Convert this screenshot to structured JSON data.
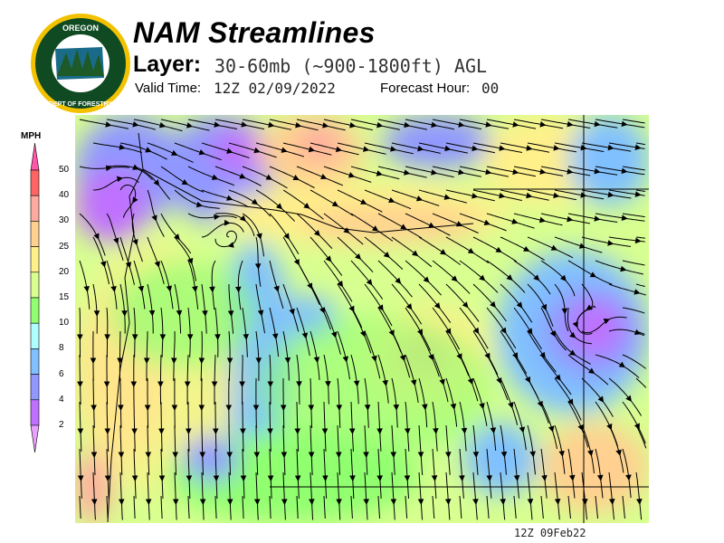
{
  "header": {
    "title": "NAM Streamlines",
    "layer_label": "Layer:",
    "layer_value": "30-60mb (~900-1800ft) AGL",
    "valid_time_label": "Valid Time:",
    "valid_time_value": "12Z 02/09/2022",
    "forecast_hour_label": "Forecast Hour:",
    "forecast_hour_value": "00"
  },
  "logo": {
    "text_top": "OREGON",
    "text_bottom": "DEPARTMENT OF FORESTRY"
  },
  "legend": {
    "units": "MPH",
    "ticks": [
      "50",
      "40",
      "30",
      "25",
      "20",
      "15",
      "10",
      "8",
      "6",
      "4",
      "2"
    ],
    "colors": [
      "#ff6464",
      "#ffaaa0",
      "#ffd090",
      "#fff08a",
      "#d8ff90",
      "#90ff70",
      "#b0ffff",
      "#80c0ff",
      "#9098ff",
      "#c070ff"
    ],
    "over_color": "#ff55aa",
    "under_color": "#e8a0ff"
  },
  "map": {
    "stamp": "12Z 09Feb22"
  }
}
